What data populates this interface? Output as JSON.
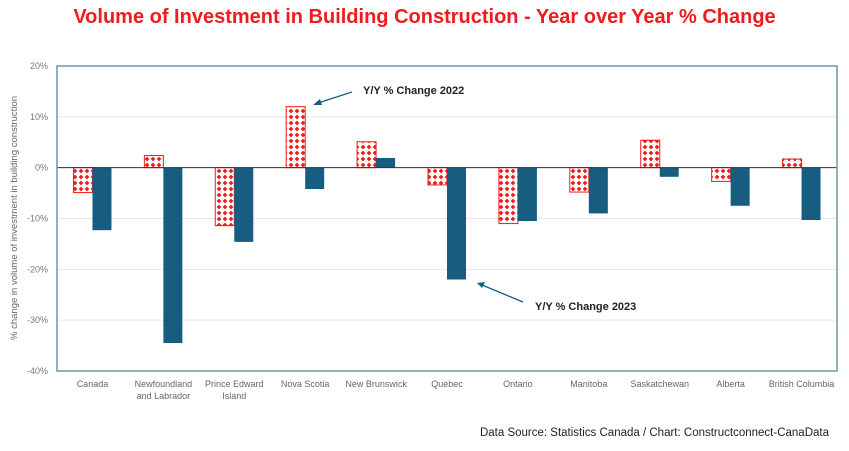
{
  "chart_data": {
    "type": "bar",
    "title": "Volume of Investment in Building Construction - Year over  Year % Change",
    "ylabel": "% change in volume of investment in building construction",
    "xlabel": "",
    "ylim": [
      -40,
      20
    ],
    "yticks": [
      20,
      10,
      0,
      -10,
      -20,
      -30,
      -40
    ],
    "ytick_labels": [
      "20%",
      "10%",
      "0%",
      "-10%",
      "-20%",
      "-30%",
      "-40%"
    ],
    "grid": true,
    "categories": [
      [
        "Canada"
      ],
      [
        "Newfoundland",
        "and Labrador"
      ],
      [
        "Prince Edward",
        "Island"
      ],
      [
        "Nova Scotia"
      ],
      [
        "New Brunswick"
      ],
      [
        "Quebec"
      ],
      [
        "Ontario"
      ],
      [
        "Manitoba"
      ],
      [
        "Saskatchewan"
      ],
      [
        "Alberta"
      ],
      [
        "British Columbia"
      ]
    ],
    "series": [
      {
        "name": "Y/Y % Change 2022",
        "color": "#ee1c1c",
        "fill": "red-dotted-pattern",
        "values": [
          -4.9,
          2.4,
          -11.4,
          12.0,
          5.1,
          -3.4,
          -11.0,
          -4.8,
          5.4,
          -2.7,
          1.7
        ]
      },
      {
        "name": "Y/Y % Change 2023",
        "color": "#175d80",
        "fill": "solid",
        "values": [
          -12.3,
          -34.5,
          -14.6,
          -4.2,
          1.9,
          -22.0,
          -10.5,
          -9.0,
          -1.8,
          -7.5,
          -10.3
        ]
      }
    ],
    "annotations": [
      {
        "text": "Y/Y % Change 2022",
        "points_to": "Nova Scotia 2022"
      },
      {
        "text": "Y/Y % Change 2023",
        "points_to": "Quebec 2023"
      }
    ],
    "legend": "none"
  },
  "source": "Data Source: Statistics Canada / Chart: Constructconnect-CanaData"
}
